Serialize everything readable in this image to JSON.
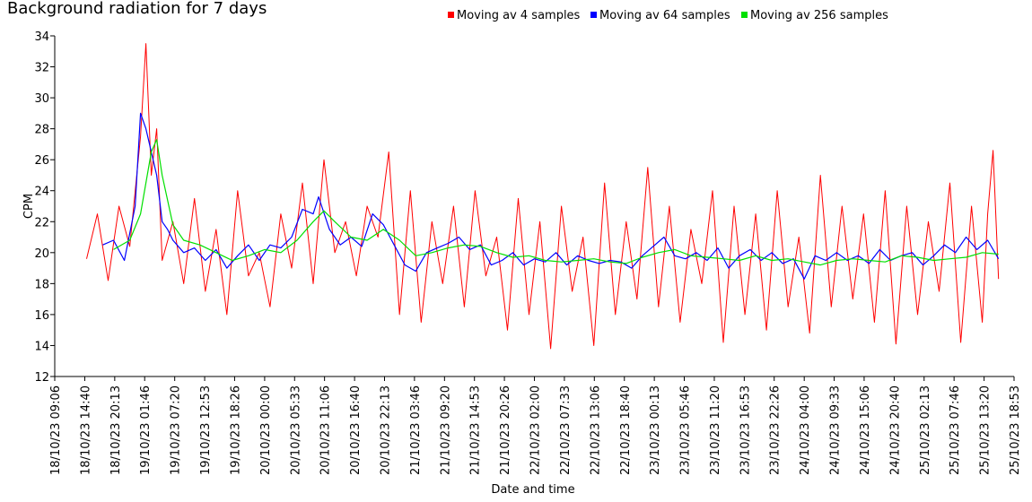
{
  "chart_data": {
    "type": "line",
    "title": "Background radiation for 7 days",
    "xlabel": "Date and time",
    "ylabel": "CPM",
    "ylim": [
      12,
      34
    ],
    "yticks": [
      12,
      14,
      16,
      18,
      20,
      22,
      24,
      26,
      28,
      30,
      32,
      34
    ],
    "x_range": [
      "18/10/23 09:06",
      "25/10/23 18:53"
    ],
    "xtick_labels": [
      "18/10/23 09:06",
      "18/10/23 14:40",
      "18/10/23 20:13",
      "19/10/23 01:46",
      "19/10/23 07:20",
      "19/10/23 12:53",
      "19/10/23 18:26",
      "20/10/23 00:00",
      "20/10/23 05:33",
      "20/10/23 11:06",
      "20/10/23 16:40",
      "20/10/23 22:13",
      "21/10/23 03:46",
      "21/10/23 09:20",
      "21/10/23 14:53",
      "21/10/23 20:26",
      "22/10/23 02:00",
      "22/10/23 07:33",
      "22/10/23 13:06",
      "22/10/23 18:40",
      "23/10/23 00:13",
      "23/10/23 05:46",
      "23/10/23 11:20",
      "23/10/23 16:53",
      "23/10/23 22:26",
      "24/10/23 04:00",
      "24/10/23 09:33",
      "24/10/23 15:06",
      "24/10/23 20:40",
      "25/10/23 02:13",
      "25/10/23 07:46",
      "25/10/23 13:20",
      "25/10/23 18:53"
    ],
    "grid": false,
    "legend_position": "top-right",
    "series": [
      {
        "name": "Moving av 4 samples",
        "color": "#ff0000",
        "x": [
          "18/10/23 15:00",
          "18/10/23 17:00",
          "18/10/23 19:00",
          "18/10/23 21:00",
          "18/10/23 23:00",
          "19/10/23 01:00",
          "19/10/23 02:00",
          "19/10/23 03:00",
          "19/10/23 04:00",
          "19/10/23 05:00",
          "19/10/23 07:00",
          "19/10/23 09:00",
          "19/10/23 11:00",
          "19/10/23 13:00",
          "19/10/23 15:00",
          "19/10/23 17:00",
          "19/10/23 19:00",
          "19/10/23 21:00",
          "19/10/23 23:00",
          "20/10/23 01:00",
          "20/10/23 03:00",
          "20/10/23 05:00",
          "20/10/23 07:00",
          "20/10/23 09:00",
          "20/10/23 11:00",
          "20/10/23 13:00",
          "20/10/23 15:00",
          "20/10/23 17:00",
          "20/10/23 19:00",
          "20/10/23 21:00",
          "20/10/23 23:00",
          "21/10/23 01:00",
          "21/10/23 03:00",
          "21/10/23 05:00",
          "21/10/23 07:00",
          "21/10/23 09:00",
          "21/10/23 11:00",
          "21/10/23 13:00",
          "21/10/23 15:00",
          "21/10/23 17:00",
          "21/10/23 19:00",
          "21/10/23 21:00",
          "21/10/23 23:00",
          "22/10/23 01:00",
          "22/10/23 03:00",
          "22/10/23 05:00",
          "22/10/23 07:00",
          "22/10/23 09:00",
          "22/10/23 11:00",
          "22/10/23 13:00",
          "22/10/23 15:00",
          "22/10/23 17:00",
          "22/10/23 19:00",
          "22/10/23 21:00",
          "22/10/23 23:00",
          "23/10/23 01:00",
          "23/10/23 03:00",
          "23/10/23 05:00",
          "23/10/23 07:00",
          "23/10/23 09:00",
          "23/10/23 11:00",
          "23/10/23 13:00",
          "23/10/23 15:00",
          "23/10/23 17:00",
          "23/10/23 19:00",
          "23/10/23 21:00",
          "23/10/23 23:00",
          "24/10/23 01:00",
          "24/10/23 03:00",
          "24/10/23 05:00",
          "24/10/23 07:00",
          "24/10/23 09:00",
          "24/10/23 11:00",
          "24/10/23 13:00",
          "24/10/23 15:00",
          "24/10/23 17:00",
          "24/10/23 19:00",
          "24/10/23 21:00",
          "24/10/23 23:00",
          "25/10/23 01:00",
          "25/10/23 03:00",
          "25/10/23 05:00",
          "25/10/23 07:00",
          "25/10/23 09:00",
          "25/10/23 11:00",
          "25/10/23 13:00",
          "25/10/23 14:00",
          "25/10/23 15:00",
          "25/10/23 16:00"
        ],
        "y": [
          19.6,
          22.5,
          18.2,
          23.0,
          20.4,
          27.5,
          33.5,
          25.0,
          28.0,
          19.5,
          22.0,
          18.0,
          23.5,
          17.5,
          21.5,
          16.0,
          24.0,
          18.5,
          20.0,
          16.5,
          22.5,
          19.0,
          24.5,
          18.0,
          26.0,
          20.0,
          22.0,
          18.5,
          23.0,
          21.0,
          26.5,
          16.0,
          24.0,
          15.5,
          22.0,
          18.0,
          23.0,
          16.5,
          24.0,
          18.5,
          21.0,
          15.0,
          23.5,
          16.0,
          22.0,
          13.8,
          23.0,
          17.5,
          21.0,
          14.0,
          24.5,
          16.0,
          22.0,
          17.0,
          25.5,
          16.5,
          23.0,
          15.5,
          21.5,
          18.0,
          24.0,
          14.2,
          23.0,
          16.0,
          22.5,
          15.0,
          24.0,
          16.5,
          21.0,
          14.8,
          25.0,
          16.5,
          23.0,
          17.0,
          22.5,
          15.5,
          24.0,
          14.1,
          23.0,
          16.0,
          22.0,
          17.5,
          24.5,
          14.2,
          23.0,
          15.5,
          22.5,
          26.6,
          18.3
        ]
      },
      {
        "name": "Moving av 64 samples",
        "color": "#0000ff",
        "x": [
          "18/10/23 18:00",
          "18/10/23 20:00",
          "18/10/23 22:00",
          "19/10/23 00:00",
          "19/10/23 01:00",
          "19/10/23 02:00",
          "19/10/23 03:00",
          "19/10/23 04:00",
          "19/10/23 05:00",
          "19/10/23 06:00",
          "19/10/23 07:00",
          "19/10/23 09:00",
          "19/10/23 11:00",
          "19/10/23 13:00",
          "19/10/23 15:00",
          "19/10/23 17:00",
          "19/10/23 19:00",
          "19/10/23 21:00",
          "19/10/23 23:00",
          "20/10/23 01:00",
          "20/10/23 03:00",
          "20/10/23 05:00",
          "20/10/23 07:00",
          "20/10/23 09:00",
          "20/10/23 10:00",
          "20/10/23 12:00",
          "20/10/23 14:00",
          "20/10/23 16:00",
          "20/10/23 18:00",
          "20/10/23 20:00",
          "20/10/23 22:00",
          "21/10/23 00:00",
          "21/10/23 02:00",
          "21/10/23 04:00",
          "21/10/23 06:00",
          "21/10/23 08:00",
          "21/10/23 10:00",
          "21/10/23 12:00",
          "21/10/23 14:00",
          "21/10/23 16:00",
          "21/10/23 18:00",
          "21/10/23 20:00",
          "21/10/23 22:00",
          "22/10/23 00:00",
          "22/10/23 02:00",
          "22/10/23 04:00",
          "22/10/23 06:00",
          "22/10/23 08:00",
          "22/10/23 10:00",
          "22/10/23 12:00",
          "22/10/23 14:00",
          "22/10/23 16:00",
          "22/10/23 18:00",
          "22/10/23 20:00",
          "22/10/23 22:00",
          "23/10/23 00:00",
          "23/10/23 02:00",
          "23/10/23 04:00",
          "23/10/23 06:00",
          "23/10/23 08:00",
          "23/10/23 10:00",
          "23/10/23 12:00",
          "23/10/23 14:00",
          "23/10/23 16:00",
          "23/10/23 18:00",
          "23/10/23 20:00",
          "23/10/23 22:00",
          "24/10/23 00:00",
          "24/10/23 02:00",
          "24/10/23 04:00",
          "24/10/23 06:00",
          "24/10/23 08:00",
          "24/10/23 10:00",
          "24/10/23 12:00",
          "24/10/23 14:00",
          "24/10/23 16:00",
          "24/10/23 18:00",
          "24/10/23 20:00",
          "24/10/23 22:00",
          "25/10/23 00:00",
          "25/10/23 02:00",
          "25/10/23 04:00",
          "25/10/23 06:00",
          "25/10/23 08:00",
          "25/10/23 10:00",
          "25/10/23 12:00",
          "25/10/23 14:00",
          "25/10/23 16:00"
        ],
        "y": [
          20.5,
          20.8,
          19.5,
          23.0,
          29.0,
          28.0,
          26.5,
          25.0,
          22.0,
          21.5,
          20.8,
          20.0,
          20.3,
          19.5,
          20.2,
          19.0,
          19.8,
          20.5,
          19.5,
          20.5,
          20.3,
          21.0,
          22.8,
          22.5,
          23.6,
          21.5,
          20.5,
          21.0,
          20.4,
          22.5,
          21.8,
          20.5,
          19.2,
          18.8,
          20.0,
          20.3,
          20.6,
          21.0,
          20.2,
          20.5,
          19.2,
          19.5,
          20.0,
          19.2,
          19.6,
          19.4,
          20.0,
          19.2,
          19.8,
          19.5,
          19.3,
          19.5,
          19.4,
          19.0,
          19.8,
          20.4,
          21.0,
          19.8,
          19.6,
          20.0,
          19.5,
          20.3,
          19.0,
          19.8,
          20.2,
          19.5,
          20.0,
          19.3,
          19.6,
          18.3,
          19.8,
          19.5,
          20.0,
          19.5,
          19.8,
          19.3,
          20.2,
          19.5,
          19.8,
          20.0,
          19.2,
          19.8,
          20.5,
          20.0,
          21.0,
          20.2,
          20.8,
          19.6
        ]
      },
      {
        "name": "Moving av 256 samples",
        "color": "#00e000",
        "x": [
          "18/10/23 20:00",
          "18/10/23 23:00",
          "19/10/23 01:00",
          "19/10/23 03:00",
          "19/10/23 04:00",
          "19/10/23 05:00",
          "19/10/23 07:00",
          "19/10/23 09:00",
          "19/10/23 12:00",
          "19/10/23 15:00",
          "19/10/23 18:00",
          "19/10/23 21:00",
          "20/10/23 00:00",
          "20/10/23 03:00",
          "20/10/23 06:00",
          "20/10/23 09:00",
          "20/10/23 11:00",
          "20/10/23 13:00",
          "20/10/23 16:00",
          "20/10/23 19:00",
          "20/10/23 22:00",
          "21/10/23 01:00",
          "21/10/23 04:00",
          "21/10/23 07:00",
          "21/10/23 10:00",
          "21/10/23 13:00",
          "21/10/23 16:00",
          "21/10/23 19:00",
          "21/10/23 22:00",
          "22/10/23 01:00",
          "22/10/23 04:00",
          "22/10/23 07:00",
          "22/10/23 10:00",
          "22/10/23 13:00",
          "22/10/23 16:00",
          "22/10/23 19:00",
          "22/10/23 22:00",
          "23/10/23 01:00",
          "23/10/23 04:00",
          "23/10/23 07:00",
          "23/10/23 10:00",
          "23/10/23 13:00",
          "23/10/23 16:00",
          "23/10/23 19:00",
          "23/10/23 22:00",
          "24/10/23 01:00",
          "24/10/23 04:00",
          "24/10/23 07:00",
          "24/10/23 10:00",
          "24/10/23 13:00",
          "24/10/23 16:00",
          "24/10/23 19:00",
          "24/10/23 22:00",
          "25/10/23 01:00",
          "25/10/23 04:00",
          "25/10/23 07:00",
          "25/10/23 10:00",
          "25/10/23 13:00",
          "25/10/23 16:00"
        ],
        "y": [
          20.2,
          20.8,
          22.5,
          26.5,
          27.3,
          25.0,
          21.8,
          20.8,
          20.5,
          20.0,
          19.5,
          19.8,
          20.2,
          20.0,
          20.8,
          22.0,
          22.7,
          22.0,
          21.0,
          20.8,
          21.5,
          20.8,
          19.8,
          20.0,
          20.3,
          20.5,
          20.4,
          20.0,
          19.7,
          19.8,
          19.5,
          19.4,
          19.5,
          19.6,
          19.4,
          19.3,
          19.7,
          20.0,
          20.2,
          19.8,
          19.7,
          19.6,
          19.5,
          19.8,
          19.5,
          19.6,
          19.4,
          19.2,
          19.5,
          19.6,
          19.5,
          19.4,
          19.8,
          19.7,
          19.5,
          19.6,
          19.7,
          20.0,
          19.9
        ]
      }
    ]
  }
}
